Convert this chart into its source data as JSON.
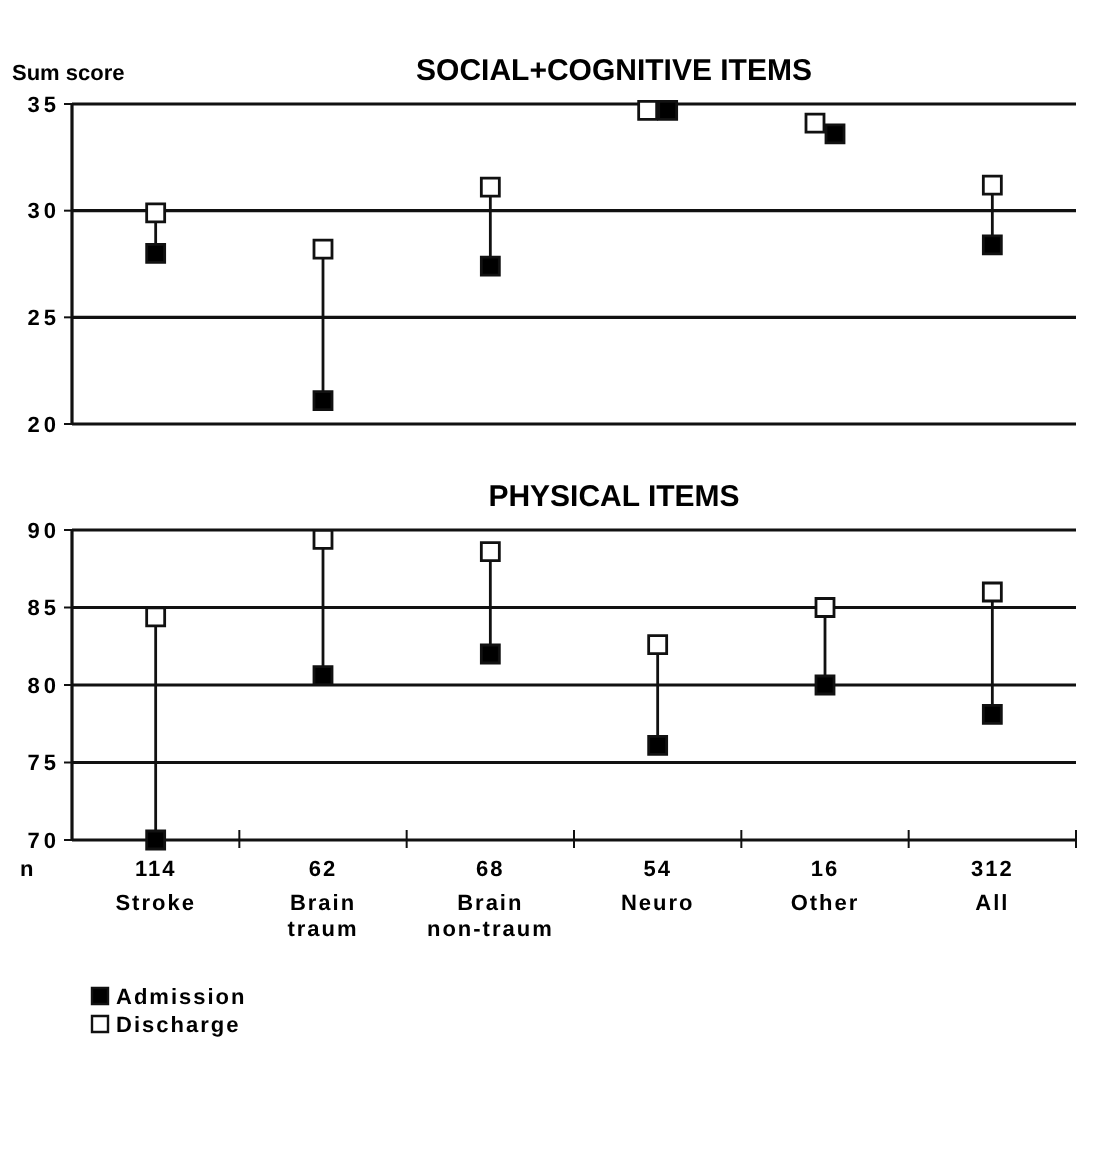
{
  "chart_data": [
    {
      "type": "scatter",
      "title": "SOCIAL+COGNITIVE ITEMS",
      "ylabel": "Sum score",
      "categories": [
        null,
        null,
        null,
        null,
        null,
        null
      ],
      "ylim": [
        20,
        35
      ],
      "yticks": [
        20,
        25,
        30,
        35
      ],
      "grid": "y",
      "tick_labels": "y",
      "marker": "square",
      "legend": false,
      "series": [
        {
          "color": "#000000",
          "values": [
            28.0,
            21.1,
            27.4,
            34.7,
            33.6,
            28.4
          ]
        },
        {
          "color": "#ffffff",
          "values": [
            29.9,
            28.2,
            31.1,
            34.7,
            34.1,
            31.2
          ]
        }
      ]
    },
    {
      "type": "scatter",
      "title": "PHYSICAL ITEMS",
      "xlabel": "n",
      "categories": [
        "114\nStroke",
        "62\nBrain\ntraum",
        "68\nBrain\nnon-traum",
        "54\nNeuro",
        "16\nOther",
        "312\nAll"
      ],
      "ylim": [
        70,
        90
      ],
      "yticks": [
        70,
        75,
        80,
        85,
        90
      ],
      "grid": "y",
      "marker": "square",
      "legend": "bottom left",
      "series": [
        {
          "name": "Admission",
          "color": "#000000",
          "values": [
            70,
            80.6,
            82.0,
            76.1,
            80.0,
            78.1
          ]
        },
        {
          "name": "Discharge",
          "color": "#ffffff",
          "values": [
            84.4,
            89.4,
            88.6,
            82.6,
            85.0,
            86.0
          ]
        }
      ]
    }
  ]
}
